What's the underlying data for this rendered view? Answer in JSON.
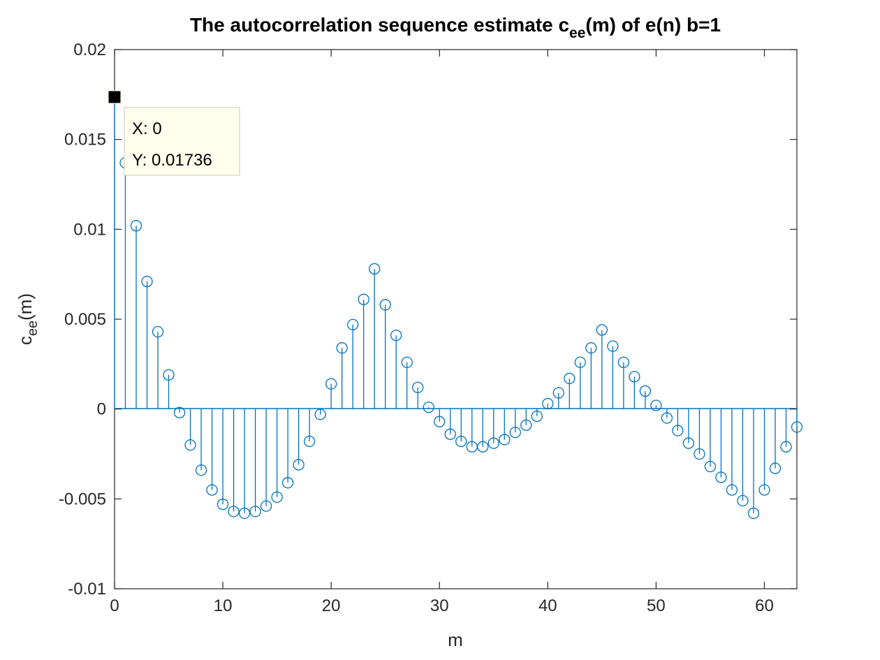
{
  "chart_data": {
    "type": "stem",
    "title": {
      "prefix": "The autocorrelation sequence estimate c",
      "subscript": "ee",
      "suffix": "(m) of e(n) b=1"
    },
    "xlabel": "m",
    "ylabel": {
      "base": "c",
      "subscript": "ee",
      "suffix": "(m)"
    },
    "xlim": [
      0,
      63
    ],
    "ylim": [
      -0.01,
      0.02
    ],
    "xticks": [
      0,
      10,
      20,
      30,
      40,
      50,
      60
    ],
    "xtick_labels": [
      "0",
      "10",
      "20",
      "30",
      "40",
      "50",
      "60"
    ],
    "yticks": [
      -0.01,
      -0.005,
      0,
      0.005,
      0.01,
      0.015,
      0.02
    ],
    "ytick_labels": [
      "-0.01",
      "-0.005",
      "0",
      "0.005",
      "0.01",
      "0.015",
      "0.02"
    ],
    "grid": false,
    "series_color": "#0072BD",
    "x": [
      0,
      1,
      2,
      3,
      4,
      5,
      6,
      7,
      8,
      9,
      10,
      11,
      12,
      13,
      14,
      15,
      16,
      17,
      18,
      19,
      20,
      21,
      22,
      23,
      24,
      25,
      26,
      27,
      28,
      29,
      30,
      31,
      32,
      33,
      34,
      35,
      36,
      37,
      38,
      39,
      40,
      41,
      42,
      43,
      44,
      45,
      46,
      47,
      48,
      49,
      50,
      51,
      52,
      53,
      54,
      55,
      56,
      57,
      58,
      59,
      60,
      61,
      62,
      63
    ],
    "y": [
      0.01736,
      0.0137,
      0.0102,
      0.0071,
      0.0043,
      0.0019,
      -0.0002,
      -0.002,
      -0.0034,
      -0.0045,
      -0.0053,
      -0.0057,
      -0.0058,
      -0.0057,
      -0.0054,
      -0.0049,
      -0.0041,
      -0.0031,
      -0.0018,
      -0.0003,
      0.0014,
      0.0034,
      0.0047,
      0.0061,
      0.0078,
      0.0058,
      0.0041,
      0.0026,
      0.0012,
      0.0001,
      -0.0007,
      -0.0014,
      -0.0018,
      -0.0021,
      -0.0021,
      -0.0019,
      -0.0017,
      -0.0013,
      -0.0009,
      -0.0004,
      0.0003,
      0.0009,
      0.0017,
      0.0026,
      0.0034,
      0.0044,
      0.0035,
      0.0026,
      0.0018,
      0.001,
      0.0002,
      -0.0005,
      -0.0012,
      -0.0019,
      -0.0025,
      -0.0032,
      -0.0038,
      -0.0045,
      -0.0051,
      -0.0058,
      -0.0045,
      -0.0033,
      -0.0021,
      -0.001
    ]
  },
  "datatip": {
    "x_text": "X: 0",
    "y_text": "Y: 0.01736",
    "marker_color": "#000000",
    "background": "#FFFFEE"
  }
}
